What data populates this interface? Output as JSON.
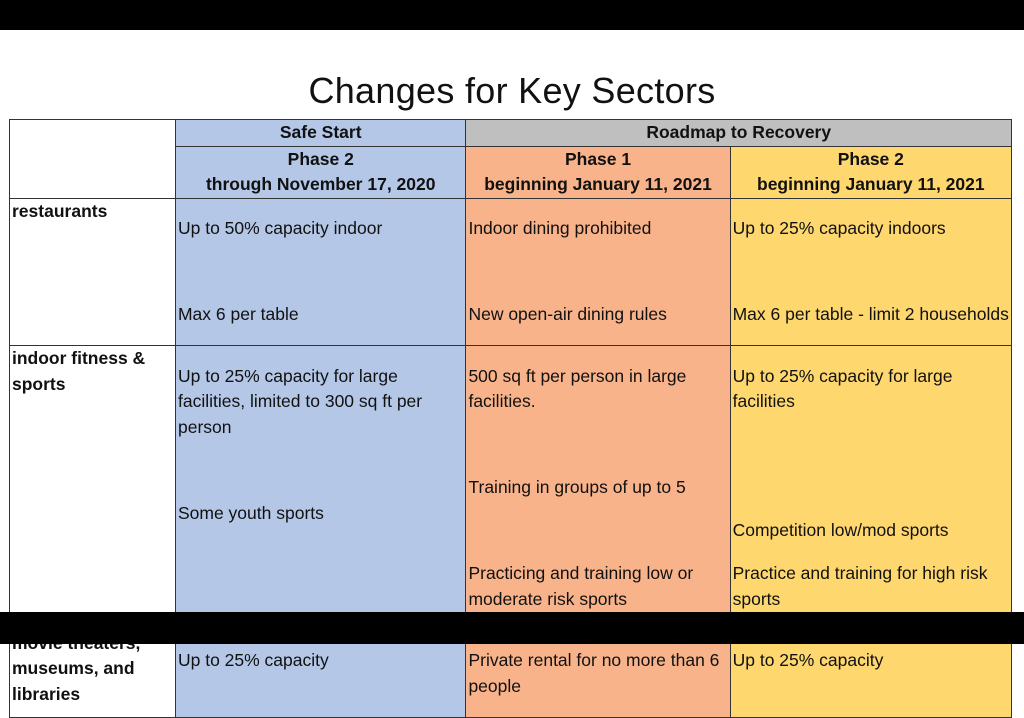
{
  "title": "Changes for Key Sectors",
  "header": {
    "safe_start": "Safe Start",
    "roadmap": "Roadmap to Recovery",
    "safe_phase": "Phase 2",
    "safe_date": "through November 17, 2020",
    "p1_phase": "Phase 1",
    "p1_date": "beginning January 11, 2021",
    "p2_phase": "Phase 2",
    "p2_date": "beginning January 11, 2021"
  },
  "rows": [
    {
      "sector": "restaurants",
      "safe": [
        "Up to 50% capacity indoor",
        "",
        "Max 6 per table"
      ],
      "p1": [
        "Indoor dining prohibited",
        "",
        "New open-air dining rules"
      ],
      "p2": [
        "Up to 25% capacity indoors",
        "",
        "Max 6 per table - limit 2 households"
      ]
    },
    {
      "sector": "indoor fitness & sports",
      "safe": [
        "Up to 25% capacity for large facilities, limited to 300 sq ft per person",
        "",
        "Some youth sports"
      ],
      "p1": [
        "500 sq ft per person in large facilities.",
        "",
        "Training in groups of up to 5",
        "",
        "Practicing and training low or moderate risk sports"
      ],
      "p2": [
        "Up to 25% capacity for large facilities",
        "",
        "Competition low/mod sports",
        "Practice and training for high risk sports"
      ]
    },
    {
      "sector": "movie theaters, museums, and libraries",
      "safe": [
        "Up to 25% capacity"
      ],
      "p1": [
        "Private rental for no more than 6 people"
      ],
      "p2": [
        "Up to 25% capacity"
      ]
    }
  ],
  "colors": {
    "safe_start": "#b4c7e7",
    "phase1": "#f8b38a",
    "phase2": "#fed76f",
    "roadmap_header": "#bfbfbf"
  }
}
